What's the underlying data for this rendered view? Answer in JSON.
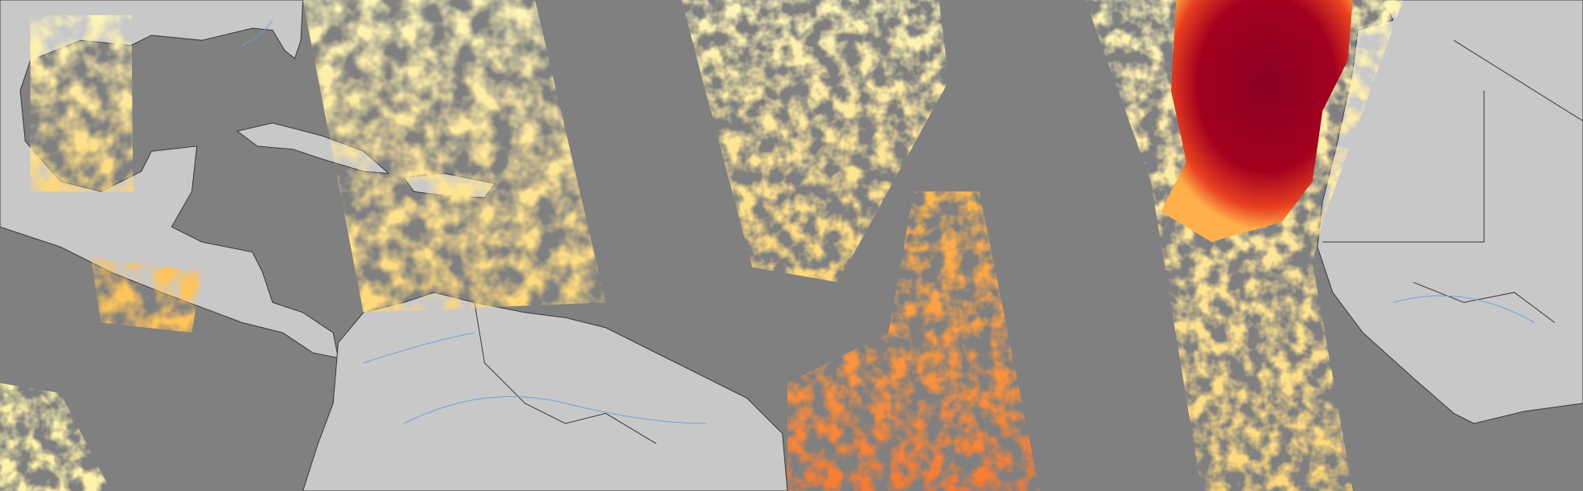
{
  "map": {
    "colors": {
      "ocean": "#808080",
      "land": "#c8c8c8",
      "borders": "#3a3a3a",
      "rivers": "#6fa3d8",
      "aerosol_low": "#fff3a8",
      "aerosol_mid": "#ffc45a",
      "aerosol_high": "#f2662a",
      "aerosol_max": "#8b0022"
    },
    "layers": [
      "land",
      "borders",
      "rivers",
      "aerosol-swaths"
    ]
  }
}
